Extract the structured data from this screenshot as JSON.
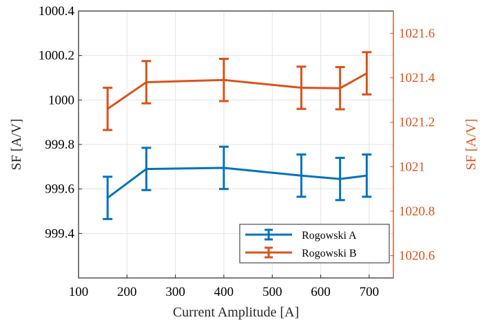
{
  "chart_data": {
    "type": "line",
    "xlabel": "Current Amplitude [A]",
    "ylabel_left": "SF [A/V]",
    "ylabel_right": "SF [A/V]",
    "xlim": [
      100,
      750
    ],
    "ylim_left": [
      999.2,
      1000.4
    ],
    "ylim_right": [
      1020.5,
      1021.7
    ],
    "x_ticks": [
      100,
      200,
      300,
      400,
      500,
      600,
      700
    ],
    "y_ticks_left": [
      999.4,
      999.6,
      999.8,
      1000,
      1000.2,
      1000.4
    ],
    "y_ticks_right": [
      1020.6,
      1020.8,
      1021,
      1021.2,
      1021.4,
      1021.6
    ],
    "grid": true,
    "legend_position": "bottom-right",
    "colors": {
      "left_axis": "#000000",
      "right_axis": "#d95319"
    },
    "series": [
      {
        "name": "Rogowski A",
        "axis": "left",
        "color": "#0072bd",
        "x": [
          160,
          240,
          400,
          560,
          640,
          695
        ],
        "y": [
          999.56,
          999.69,
          999.695,
          999.66,
          999.645,
          999.66
        ],
        "err": [
          0.095,
          0.095,
          0.095,
          0.095,
          0.095,
          0.095
        ]
      },
      {
        "name": "Rogowski B",
        "axis": "right",
        "color": "#d95319",
        "x": [
          160,
          240,
          400,
          560,
          640,
          695
        ],
        "y": [
          1021.26,
          1021.38,
          1021.39,
          1021.355,
          1021.353,
          1021.42
        ],
        "err": [
          0.095,
          0.095,
          0.095,
          0.095,
          0.095,
          0.095
        ]
      }
    ]
  }
}
